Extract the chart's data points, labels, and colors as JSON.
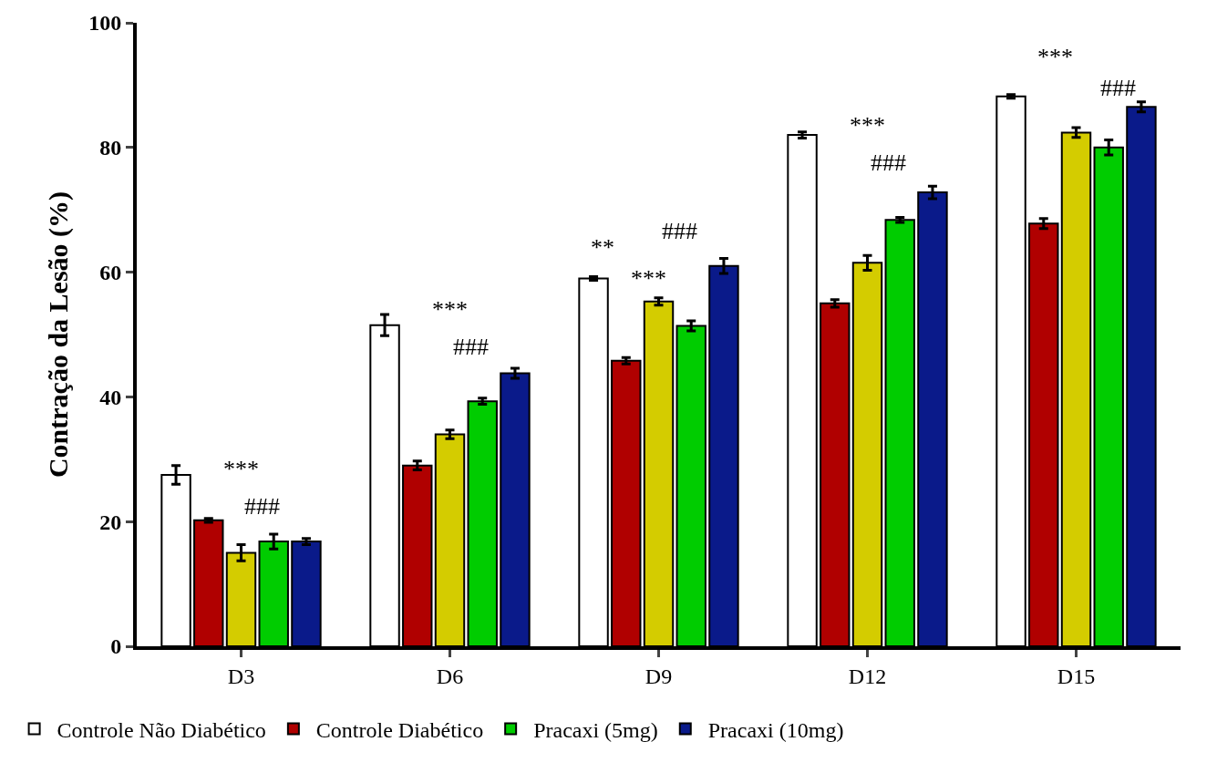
{
  "chart_data": {
    "type": "bar",
    "ylabel": "Contração da Lesão (%)",
    "categories": [
      "D3",
      "D6",
      "D9",
      "D12",
      "D15"
    ],
    "series": [
      {
        "name": "Controle Não Diabético",
        "color": "#ffffff",
        "values": [
          27.5,
          51.5,
          59,
          82,
          88.2
        ],
        "errors": [
          1.5,
          1.7,
          0.3,
          0.5,
          0.3
        ]
      },
      {
        "name": "Controle Diabético",
        "color": "#b00000",
        "values": [
          20.2,
          29,
          45.8,
          55,
          67.8
        ],
        "errors": [
          0.3,
          0.7,
          0.5,
          0.6,
          0.8
        ]
      },
      {
        "color": "#d4cc00",
        "values": [
          15,
          34,
          55.3,
          61.5,
          82.4
        ],
        "errors": [
          1.3,
          0.7,
          0.6,
          1.2,
          0.8
        ]
      },
      {
        "name": "Pracaxi (5mg)",
        "color": "#00cc00",
        "values": [
          16.8,
          39.3,
          51.4,
          68.4,
          80
        ],
        "errors": [
          1.2,
          0.5,
          0.8,
          0.4,
          1.2
        ]
      },
      {
        "name": "Pracaxi (10mg)",
        "color": "#0a1a8a",
        "values": [
          16.8,
          43.8,
          61,
          72.8,
          86.5
        ],
        "errors": [
          0.5,
          0.8,
          1.2,
          1,
          0.8
        ]
      }
    ],
    "annotations": [
      "***",
      "###",
      "***",
      "###",
      "**",
      "***",
      "###",
      "***",
      "###",
      "***",
      "###"
    ],
    "ylim": [
      0,
      100
    ],
    "yticks": [
      0,
      20,
      40,
      60,
      80,
      100
    ],
    "legend": "bottom"
  }
}
